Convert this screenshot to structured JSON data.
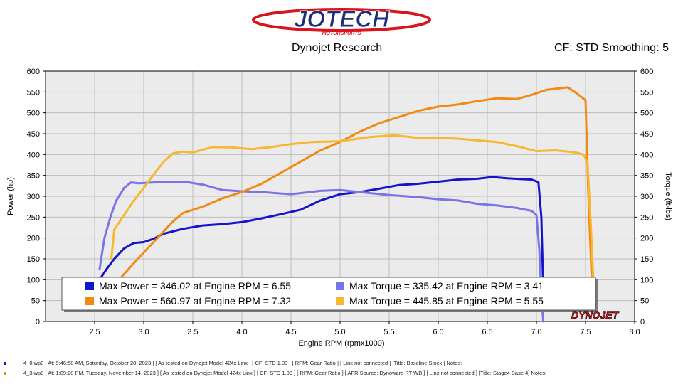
{
  "header": {
    "logo_text": "JOTECH",
    "logo_subtext": "MOTORSPORTS",
    "research": "Dynojet Research",
    "cf_info": "CF: STD Smoothing: 5"
  },
  "colors": {
    "run1_power": "#1414c8",
    "run1_torque": "#7a74e6",
    "run2_power": "#f08a12",
    "run2_torque": "#f7b72e"
  },
  "chart_data": {
    "type": "line",
    "xlabel": "Engine RPM (rpmx1000)",
    "ylabel": "Power (hp)",
    "y2label": "Torque (ft-lbs)",
    "xlim": [
      2.0,
      8.0
    ],
    "ylim": [
      0,
      600
    ],
    "y2lim": [
      0,
      600
    ],
    "xticks": [
      2.5,
      3.0,
      3.5,
      4.0,
      4.5,
      5.0,
      5.5,
      6.0,
      6.5,
      7.0,
      7.5,
      8.0
    ],
    "yticks": [
      0,
      50,
      100,
      150,
      200,
      250,
      300,
      350,
      400,
      450,
      500,
      550,
      600
    ],
    "grid": true,
    "legend_position": "bottom",
    "legend": [
      {
        "label": "Max Power = 346.02 at Engine RPM = 6.55",
        "series": "run1_power"
      },
      {
        "label": "Max Torque = 335.42 at Engine RPM = 3.41",
        "series": "run1_torque"
      },
      {
        "label": "Max Power = 560.97 at Engine RPM = 7.32",
        "series": "run2_power"
      },
      {
        "label": "Max Torque = 445.85 at Engine RPM = 5.55",
        "series": "run2_torque"
      }
    ],
    "series": [
      {
        "key": "run1_power",
        "axis": "left",
        "x": [
          2.55,
          2.62,
          2.7,
          2.8,
          2.9,
          3.0,
          3.1,
          3.2,
          3.4,
          3.6,
          3.8,
          4.0,
          4.2,
          4.4,
          4.6,
          4.8,
          5.0,
          5.2,
          5.4,
          5.6,
          5.8,
          6.0,
          6.2,
          6.4,
          6.55,
          6.7,
          6.85,
          6.95,
          7.02,
          7.05,
          7.07
        ],
        "y": [
          100,
          125,
          150,
          175,
          188,
          190,
          198,
          210,
          222,
          230,
          233,
          238,
          247,
          257,
          268,
          290,
          305,
          310,
          318,
          327,
          330,
          335,
          340,
          342,
          346,
          343,
          341,
          340,
          334,
          250,
          70
        ]
      },
      {
        "key": "run1_torque",
        "axis": "right",
        "x": [
          2.55,
          2.6,
          2.66,
          2.72,
          2.8,
          2.87,
          2.95,
          3.1,
          3.3,
          3.41,
          3.6,
          3.8,
          4.0,
          4.2,
          4.5,
          4.8,
          5.0,
          5.2,
          5.5,
          5.8,
          6.0,
          6.2,
          6.4,
          6.6,
          6.8,
          6.95,
          7.0,
          7.03,
          7.05,
          7.07
        ],
        "y": [
          125,
          200,
          250,
          290,
          320,
          333,
          331,
          333,
          334,
          335,
          328,
          315,
          312,
          310,
          305,
          313,
          315,
          310,
          303,
          298,
          293,
          290,
          282,
          278,
          272,
          265,
          255,
          170,
          60,
          0
        ]
      },
      {
        "key": "run2_power",
        "axis": "left",
        "x": [
          2.66,
          2.75,
          2.9,
          3.1,
          3.3,
          3.4,
          3.6,
          3.8,
          4.0,
          4.2,
          4.5,
          4.8,
          5.0,
          5.2,
          5.4,
          5.6,
          5.8,
          6.0,
          6.2,
          6.4,
          6.6,
          6.8,
          6.95,
          7.1,
          7.32,
          7.42,
          7.5,
          7.53,
          7.56,
          7.58
        ],
        "y": [
          60,
          100,
          140,
          190,
          240,
          260,
          275,
          295,
          310,
          330,
          370,
          410,
          430,
          455,
          475,
          490,
          505,
          515,
          520,
          528,
          535,
          533,
          543,
          555,
          561,
          545,
          530,
          300,
          120,
          50
        ]
      },
      {
        "key": "run2_torque",
        "axis": "right",
        "x": [
          2.67,
          2.7,
          2.8,
          2.9,
          3.0,
          3.1,
          3.2,
          3.3,
          3.4,
          3.5,
          3.7,
          3.9,
          4.1,
          4.3,
          4.5,
          4.7,
          5.0,
          5.3,
          5.55,
          5.8,
          6.0,
          6.2,
          6.4,
          6.6,
          6.8,
          7.0,
          7.2,
          7.4,
          7.48,
          7.52,
          7.55,
          7.58,
          7.6
        ],
        "y": [
          150,
          220,
          255,
          290,
          320,
          352,
          382,
          403,
          407,
          405,
          418,
          417,
          413,
          418,
          425,
          430,
          432,
          442,
          446,
          440,
          440,
          438,
          434,
          430,
          420,
          408,
          410,
          405,
          400,
          380,
          250,
          100,
          60
        ]
      }
    ],
    "annotation": "DYNOJET"
  },
  "footer": {
    "run1": "4_0.wp8 [ At: 9:46:58 AM, Saturday, October 28, 2023 ] [ As tested on Dynojet Model 424x Linx ] [ CF: STD 1.03 ] [ RPM: Gear Ratio ] [ Linx not connected ] [Title: Baseline Stock ]  Notes:",
    "run2": "4_3.wp8 [ At: 1:09:20 PM, Tuesday, November 14, 2023 ] [ As tested on Dynojet Model 424x Linx ] [ CF: STD 1.03 ] [ RPM: Gear Ratio ] [ AFR Source: Dynoware RT WB ] [ Linx not connected ] [Title: Stage4 Base 4]  Notes:"
  }
}
